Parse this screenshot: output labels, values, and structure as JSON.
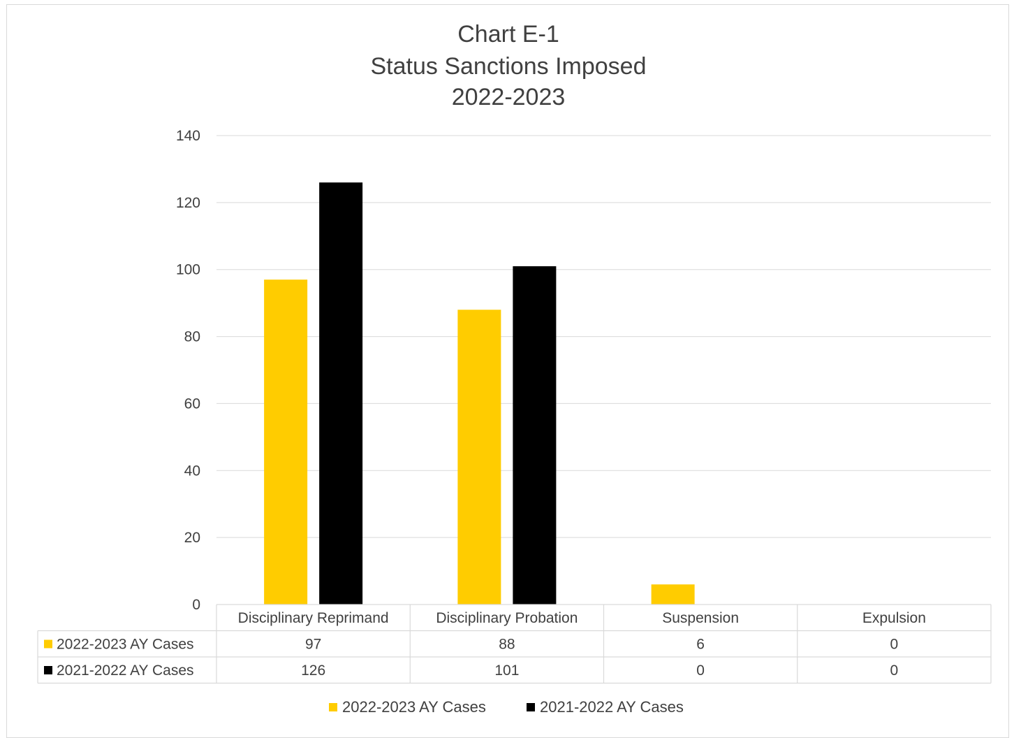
{
  "chart_data": {
    "type": "bar",
    "title_lines": [
      "Chart E-1",
      "Status Sanctions Imposed",
      "2022-2023"
    ],
    "categories": [
      "Disciplinary Reprimand",
      "Disciplinary Probation",
      "Suspension",
      "Expulsion"
    ],
    "series": [
      {
        "name": "2022-2023 AY Cases",
        "values": [
          97,
          88,
          6,
          0
        ],
        "color": "#ffcc00"
      },
      {
        "name": "2021-2022 AY Cases",
        "values": [
          126,
          101,
          0,
          0
        ],
        "color": "#000000"
      }
    ],
    "ylim": [
      0,
      140
    ],
    "yticks": [
      0,
      20,
      40,
      60,
      80,
      100,
      120,
      140
    ],
    "grid": true,
    "data_table": true,
    "legend_position": "bottom"
  }
}
